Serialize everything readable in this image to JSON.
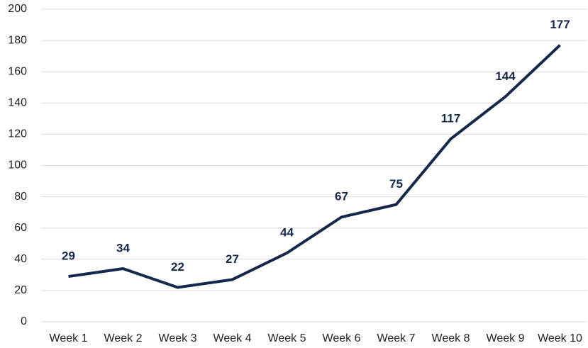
{
  "chart_data": {
    "type": "line",
    "categories": [
      "Week 1",
      "Week 2",
      "Week 3",
      "Week 4",
      "Week 5",
      "Week 6",
      "Week 7",
      "Week 8",
      "Week 9",
      "Week 10"
    ],
    "values": [
      29,
      34,
      22,
      27,
      44,
      67,
      75,
      117,
      144,
      177
    ],
    "color": "#14284b",
    "ylim": [
      0,
      200
    ],
    "yticks": [
      0,
      20,
      40,
      60,
      80,
      100,
      120,
      140,
      160,
      180,
      200
    ],
    "grid": true
  }
}
